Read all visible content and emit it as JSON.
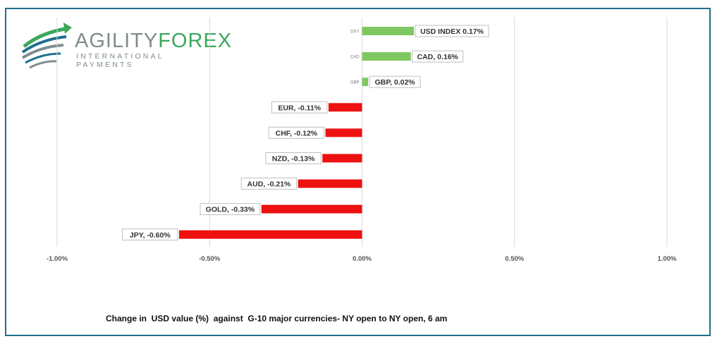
{
  "brand": {
    "name_part1": "AGILITY",
    "name_part2": "FOREX",
    "tagline": "INTERNATIONAL PAYMENTS"
  },
  "caption": "Change in  USD value (%)  against  G-10 major currencies- NY open to NY open, 6 am",
  "colors": {
    "positive": "#7fc761",
    "negative": "#ee1111",
    "grid": "#d9d9d9",
    "frame": "#1f6f8b"
  },
  "chart_data": {
    "type": "bar",
    "orientation": "horizontal",
    "categories": [
      "DXY",
      "CAD",
      "GBP",
      "EUR",
      "CHF",
      "NZD",
      "AUD",
      "GOLD",
      "JPY"
    ],
    "values": [
      0.17,
      0.16,
      0.02,
      -0.11,
      -0.12,
      -0.13,
      -0.21,
      -0.33,
      -0.6
    ],
    "data_labels": [
      "USD INDEX 0.17%",
      "CAD, 0.16%",
      "GBP, 0.02%",
      "EUR, -0.11%",
      "CHF, -0.12%",
      "NZD, -0.13%",
      "AUD, -0.21%",
      "GOLD, -0.33%",
      "JPY, -0.60%"
    ],
    "xlim": [
      -1.0,
      1.0
    ],
    "x_ticks": [
      -1.0,
      -0.5,
      0.0,
      0.5,
      1.0
    ],
    "x_tick_labels": [
      "-1.00%",
      "-0.50%",
      "0.00%",
      "0.50%",
      "1.00%"
    ],
    "grid": true
  }
}
